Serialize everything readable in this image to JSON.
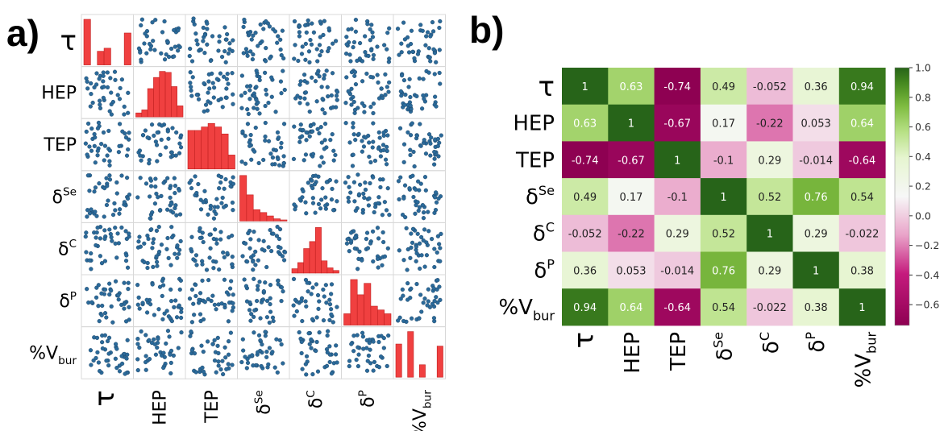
{
  "panel_labels": {
    "a": "a)",
    "b": "b)"
  },
  "variables": [
    {
      "base": "τ",
      "sup": "",
      "sub": ""
    },
    {
      "base": "HEP",
      "sup": "",
      "sub": ""
    },
    {
      "base": "TEP",
      "sup": "",
      "sub": ""
    },
    {
      "base": "δ",
      "sup": "Se",
      "sub": ""
    },
    {
      "base": "δ",
      "sup": "C",
      "sub": ""
    },
    {
      "base": "δ",
      "sup": "P",
      "sub": ""
    },
    {
      "base": "%V",
      "sup": "",
      "sub": "bur"
    }
  ],
  "colors": {
    "scatter_point": "#2b6a9a",
    "scatter_edge": "#1b3f5e",
    "histogram_bar": "#f04040",
    "histogram_edge": "#c02020",
    "heatmap_min": "#8e0152",
    "heatmap_mid": "#f7f7f7",
    "heatmap_max": "#276419"
  },
  "chart_data": [
    {
      "type": "scatter",
      "kind": "pair-plot",
      "grid": false,
      "histograms": [
        [
          6,
          0,
          1.8,
          2.2,
          0,
          0,
          4.2
        ],
        [
          0.4,
          0.7,
          2.8,
          3.9,
          4.5,
          4.4,
          3.0,
          1.1
        ],
        [
          2.2,
          2.2,
          2.4,
          2.6,
          2.4,
          2.0,
          0.8
        ],
        [
          8.0,
          4.6,
          2.0,
          1.5,
          0.9,
          0.4,
          0.2
        ],
        [
          0.5,
          1.2,
          2.8,
          3.6,
          5.2,
          1.4,
          0.6,
          0.3
        ],
        [
          1.2,
          4.8,
          3.2,
          4.4,
          2.0,
          1.6,
          1.2
        ],
        [
          3.2,
          0,
          4.4,
          0,
          1.2,
          0,
          0,
          3.0
        ]
      ]
    },
    {
      "type": "heatmap",
      "rows": [
        "τ",
        "HEP",
        "TEP",
        "δSe",
        "δC",
        "δP",
        "%Vbur"
      ],
      "columns": [
        "τ",
        "HEP",
        "TEP",
        "δSe",
        "δC",
        "δP",
        "%Vbur"
      ],
      "values": [
        [
          1,
          0.63,
          -0.74,
          0.49,
          -0.052,
          0.36,
          0.94
        ],
        [
          0.63,
          1,
          -0.67,
          0.17,
          -0.22,
          0.053,
          0.64
        ],
        [
          -0.74,
          -0.67,
          1,
          -0.1,
          0.29,
          -0.014,
          -0.64
        ],
        [
          0.49,
          0.17,
          -0.1,
          1,
          0.52,
          0.76,
          0.54
        ],
        [
          -0.052,
          -0.22,
          0.29,
          0.52,
          1,
          0.29,
          -0.022
        ],
        [
          0.36,
          0.053,
          -0.014,
          0.76,
          0.29,
          1,
          0.38
        ],
        [
          0.94,
          0.64,
          -0.64,
          0.54,
          -0.022,
          0.38,
          1
        ]
      ],
      "cell_labels": [
        [
          "1",
          "0.63",
          "-0.74",
          "0.49",
          "-0.052",
          "0.36",
          "0.94"
        ],
        [
          "0.63",
          "1",
          "-0.67",
          "0.17",
          "-0.22",
          "0.053",
          "0.64"
        ],
        [
          "-0.74",
          "-0.67",
          "1",
          "-0.1",
          "0.29",
          "-0.014",
          "-0.64"
        ],
        [
          "0.49",
          "0.17",
          "-0.1",
          "1",
          "0.52",
          "0.76",
          "0.54"
        ],
        [
          "-0.052",
          "-0.22",
          "0.29",
          "0.52",
          "1",
          "0.29",
          "-0.022"
        ],
        [
          "0.36",
          "0.053",
          "-0.014",
          "0.76",
          "0.29",
          "1",
          "0.38"
        ],
        [
          "0.94",
          "0.64",
          "-0.64",
          "0.54",
          "-0.022",
          "0.38",
          "1"
        ]
      ],
      "colorbar": {
        "vmin": -0.74,
        "vmax": 1.0,
        "ticks": [
          1.0,
          0.8,
          0.6,
          0.4,
          0.2,
          0.0,
          -0.2,
          -0.4,
          -0.6
        ],
        "tick_labels": [
          "1.0",
          "0.8",
          "0.6",
          "0.4",
          "0.2",
          "0.0",
          "−0.2",
          "−0.4",
          "−0.6"
        ],
        "placement": "right"
      }
    }
  ]
}
